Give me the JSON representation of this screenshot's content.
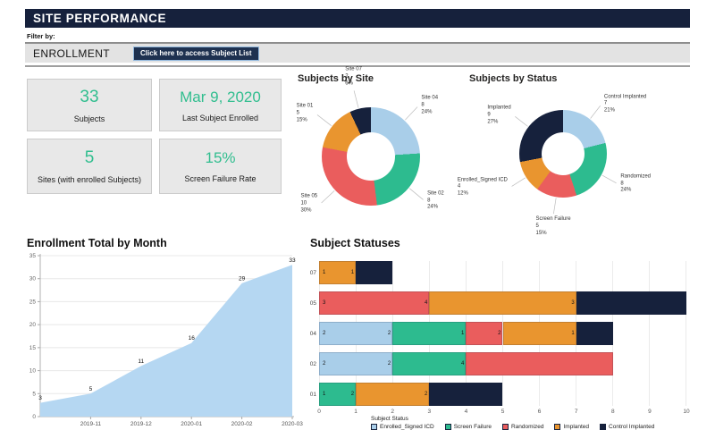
{
  "palette": {
    "navy": "#16213C",
    "lightblue": "#A9CEE9",
    "teal": "#2DBB8F",
    "red": "#EA5D5D",
    "orange": "#E9952F",
    "areaBlue": "#B5D7F2",
    "green": "#31BE8F"
  },
  "header": {
    "title": "SITE PERFORMANCE"
  },
  "filter": {
    "label": "Filter by:"
  },
  "enrollment": {
    "title": "ENROLLMENT",
    "button_label": "Click here to access Subject List"
  },
  "kpis": [
    {
      "value": "33",
      "label": "Subjects"
    },
    {
      "value": "Mar 9, 2020",
      "label": "Last Subject Enrolled"
    },
    {
      "value": "5",
      "label": "Sites (with enrolled Subjects)"
    },
    {
      "value": "15%",
      "label": "Screen Failure Rate"
    }
  ],
  "chart_data": [
    {
      "type": "pie",
      "donut": true,
      "title": "Subjects by Site",
      "slices": [
        {
          "label": "Site 04",
          "value": 8,
          "pct": 24,
          "color": "lightblue"
        },
        {
          "label": "Site 02",
          "value": 8,
          "pct": 24,
          "color": "teal"
        },
        {
          "label": "Site 05",
          "value": 10,
          "pct": 30,
          "color": "red"
        },
        {
          "label": "Site 01",
          "value": 5,
          "pct": 15,
          "color": "orange"
        },
        {
          "label": "Site 07",
          "value": 2,
          "pct": 6,
          "color": "navy"
        }
      ],
      "start_angle": "top",
      "clockwise": true
    },
    {
      "type": "pie",
      "donut": true,
      "title": "Subjects by Status",
      "slices": [
        {
          "label": "Control Implanted",
          "value": 7,
          "pct": 21,
          "color": "lightblue"
        },
        {
          "label": "Randomized",
          "value": 8,
          "pct": 24,
          "color": "teal"
        },
        {
          "label": "Screen Failure",
          "value": 5,
          "pct": 15,
          "color": "red"
        },
        {
          "label": "Enrolled_Signed ICD",
          "value": 4,
          "pct": 12,
          "color": "orange"
        },
        {
          "label": "Implanted",
          "value": 9,
          "pct": 27,
          "color": "navy"
        }
      ],
      "start_angle": "top",
      "clockwise": true
    },
    {
      "type": "area",
      "title": "Enrollment Total by Month",
      "x": [
        "",
        "2019-11",
        "2019-12",
        "2020-01",
        "2020-02",
        "2020-03"
      ],
      "values": [
        3,
        5,
        11,
        16,
        29,
        33
      ],
      "ylim": [
        0,
        35
      ],
      "yticks": [
        0,
        5,
        10,
        15,
        20,
        25,
        30,
        35
      ],
      "fill": "areaBlue",
      "grid": true
    },
    {
      "type": "bar",
      "stacked": true,
      "orientation": "horizontal",
      "title": "Subject Statuses",
      "legend_title": "Subject Status",
      "xlim": [
        0,
        10
      ],
      "xticks": [
        0,
        1,
        2,
        3,
        4,
        5,
        6,
        7,
        8,
        9,
        10
      ],
      "statuses": [
        {
          "name": "Enrolled_Signed ICD",
          "color": "lightblue"
        },
        {
          "name": "Screen Failure",
          "color": "teal"
        },
        {
          "name": "Randomized",
          "color": "red"
        },
        {
          "name": "Implanted",
          "color": "orange"
        },
        {
          "name": "Control Implanted",
          "color": "navy"
        }
      ],
      "rows": [
        {
          "category": "07",
          "segments": [
            {
              "status": "Implanted",
              "value": 1
            },
            {
              "status": "Control Implanted",
              "value": 1
            }
          ]
        },
        {
          "category": "05",
          "segments": [
            {
              "status": "Randomized",
              "value": 3
            },
            {
              "status": "Implanted",
              "value": 4
            },
            {
              "status": "Control Implanted",
              "value": 3
            }
          ]
        },
        {
          "category": "04",
          "segments": [
            {
              "status": "Enrolled_Signed ICD",
              "value": 2
            },
            {
              "status": "Screen Failure",
              "value": 2
            },
            {
              "status": "Randomized",
              "value": 1
            },
            {
              "status": "Implanted",
              "value": 2
            },
            {
              "status": "Control Implanted",
              "value": 1
            }
          ]
        },
        {
          "category": "02",
          "segments": [
            {
              "status": "Enrolled_Signed ICD",
              "value": 2
            },
            {
              "status": "Screen Failure",
              "value": 2
            },
            {
              "status": "Randomized",
              "value": 4
            }
          ]
        },
        {
          "category": "01",
          "segments": [
            {
              "status": "Screen Failure",
              "value": 1
            },
            {
              "status": "Implanted",
              "value": 2
            },
            {
              "status": "Control Implanted",
              "value": 2
            }
          ]
        }
      ]
    }
  ]
}
